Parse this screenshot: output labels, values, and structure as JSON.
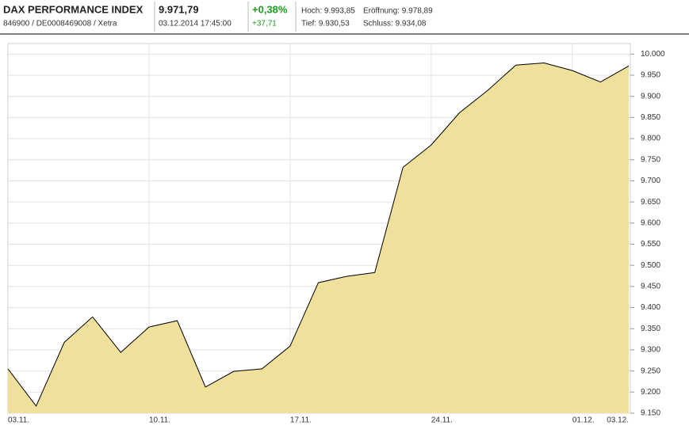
{
  "header": {
    "name": "DAX PERFORMANCE INDEX",
    "ids": "846900 / DE0008469008 / Xetra",
    "price": "9.971,79",
    "timestamp": "03.12.2014 17:45:00",
    "change_pct": "+0,38%",
    "change_abs": "+37,71",
    "high": "Hoch: 9.993,85",
    "open": "Eröffnung: 9.978,89",
    "low": "Tief: 9.930,53",
    "close": "Schluss: 9.934,08"
  },
  "chart_data": {
    "type": "area",
    "color": "#efe19b",
    "line_color": "#000000",
    "grid": true,
    "categories": [
      "03.11.",
      null,
      null,
      null,
      null,
      "10.11.",
      null,
      null,
      null,
      null,
      "17.11.",
      null,
      null,
      null,
      null,
      "24.11.",
      null,
      null,
      null,
      null,
      "01.12.",
      null,
      "03.12."
    ],
    "values": [
      9255,
      9167,
      9318,
      9378,
      9294,
      9354,
      9369,
      9212,
      9249,
      9255,
      9309,
      9459,
      9474,
      9483,
      9732,
      9785,
      9861,
      9914,
      9974,
      9979,
      9961,
      9934,
      9972
    ],
    "ylim": [
      9150,
      10025
    ],
    "yticks": [
      {
        "value": 9150,
        "label": "9.150"
      },
      {
        "value": 9200,
        "label": "9.200"
      },
      {
        "value": 9250,
        "label": "9.250"
      },
      {
        "value": 9300,
        "label": "9.300"
      },
      {
        "value": 9350,
        "label": "9.350"
      },
      {
        "value": 9400,
        "label": "9.400"
      },
      {
        "value": 9450,
        "label": "9.450"
      },
      {
        "value": 9500,
        "label": "9.500"
      },
      {
        "value": 9550,
        "label": "9.550"
      },
      {
        "value": 9600,
        "label": "9.600"
      },
      {
        "value": 9650,
        "label": "9.650"
      },
      {
        "value": 9700,
        "label": "9.700"
      },
      {
        "value": 9750,
        "label": "9.750"
      },
      {
        "value": 9800,
        "label": "9.800"
      },
      {
        "value": 9850,
        "label": "9.850"
      },
      {
        "value": 9900,
        "label": "9.900"
      },
      {
        "value": 9950,
        "label": "9.950"
      },
      {
        "value": 10000,
        "label": "10.000"
      }
    ]
  }
}
